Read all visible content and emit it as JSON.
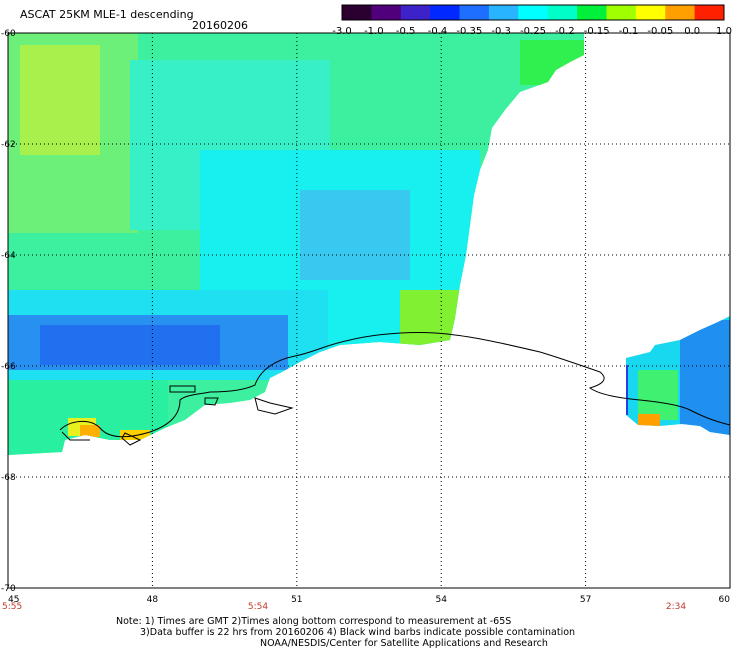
{
  "header": {
    "title": "ASCAT 25KM MLE-1 descending",
    "date": "20160206"
  },
  "colorbar": {
    "labels": [
      "-3.0",
      "-1.0",
      "-0.5",
      "-0.4",
      "-0.35",
      "-0.3",
      "-0.25",
      "-0.2",
      "-0.15",
      "-0.1",
      "-0.05",
      "0.0",
      "1.0"
    ],
    "colors": [
      "#2b0030",
      "#50007a",
      "#3c22c8",
      "#0028ff",
      "#1e6eff",
      "#28b4ff",
      "#00ffff",
      "#00ffc8",
      "#00f03c",
      "#a0ff00",
      "#ffff00",
      "#ffa000",
      "#ff2000"
    ]
  },
  "axes": {
    "lat_labels": [
      "-60",
      "-62",
      "-64",
      "-66",
      "-68",
      "-70"
    ],
    "lon_labels": [
      "45",
      "48",
      "51",
      "54",
      "57",
      "60"
    ],
    "time_labels": [
      "5:55",
      "5:54",
      "2:34"
    ]
  },
  "notes": {
    "line1": "Note: 1) Times are GMT 2)Times along bottom correspond to measurement at -65S",
    "line2": "3)Data buffer is 22 hrs from 20160206 4) Black wind barbs indicate possible contamination",
    "line3": "NOAA/NESDIS/Center for Satellite Applications and Research"
  }
}
